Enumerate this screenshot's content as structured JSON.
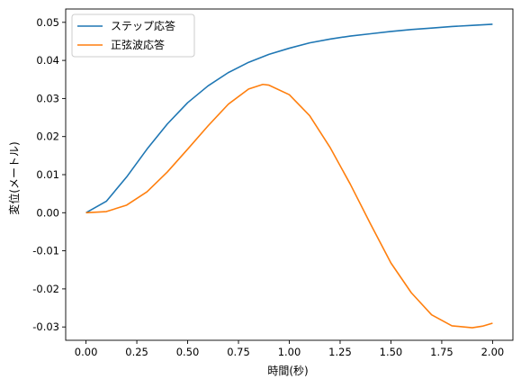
{
  "chart_data": {
    "type": "line",
    "title": "",
    "xlabel": "時間(秒)",
    "ylabel": "変位(メートル)",
    "xlim": [
      -0.1,
      2.1
    ],
    "ylim": [
      -0.0335,
      0.0535
    ],
    "xticks": [
      0.0,
      0.25,
      0.5,
      0.75,
      1.0,
      1.25,
      1.5,
      1.75,
      2.0
    ],
    "xtick_labels": [
      "0.00",
      "0.25",
      "0.50",
      "0.75",
      "1.00",
      "1.25",
      "1.50",
      "1.75",
      "2.00"
    ],
    "yticks": [
      -0.03,
      -0.02,
      -0.01,
      0.0,
      0.01,
      0.02,
      0.03,
      0.04,
      0.05
    ],
    "ytick_labels": [
      "-0.03",
      "-0.02",
      "-0.01",
      "0.00",
      "0.01",
      "0.02",
      "0.03",
      "0.04",
      "0.05"
    ],
    "grid": false,
    "legend_position": "top-left",
    "series": [
      {
        "name": "ステップ応答",
        "color": "#1f77b4",
        "x": [
          0.0,
          0.1,
          0.2,
          0.3,
          0.4,
          0.5,
          0.6,
          0.7,
          0.8,
          0.9,
          1.0,
          1.1,
          1.2,
          1.3,
          1.4,
          1.5,
          1.6,
          1.7,
          1.8,
          1.9,
          2.0
        ],
        "y": [
          0.0,
          0.003,
          0.0094,
          0.0167,
          0.0233,
          0.0289,
          0.0333,
          0.0368,
          0.0395,
          0.0416,
          0.0432,
          0.0446,
          0.0456,
          0.0464,
          0.047,
          0.0476,
          0.0481,
          0.0485,
          0.0489,
          0.0492,
          0.0495
        ]
      },
      {
        "name": "正弦波応答",
        "color": "#ff7f0e",
        "x": [
          0.0,
          0.1,
          0.2,
          0.3,
          0.4,
          0.5,
          0.6,
          0.7,
          0.8,
          0.87,
          0.9,
          1.0,
          1.1,
          1.2,
          1.3,
          1.4,
          1.5,
          1.6,
          1.7,
          1.8,
          1.9,
          1.95,
          2.0
        ],
        "y": [
          0.0,
          0.0003,
          0.002,
          0.0055,
          0.0107,
          0.0167,
          0.0228,
          0.0285,
          0.0325,
          0.0337,
          0.0335,
          0.031,
          0.0255,
          0.0172,
          0.0075,
          -0.003,
          -0.0132,
          -0.021,
          -0.0268,
          -0.0297,
          -0.0302,
          -0.0298,
          -0.029
        ]
      }
    ]
  }
}
